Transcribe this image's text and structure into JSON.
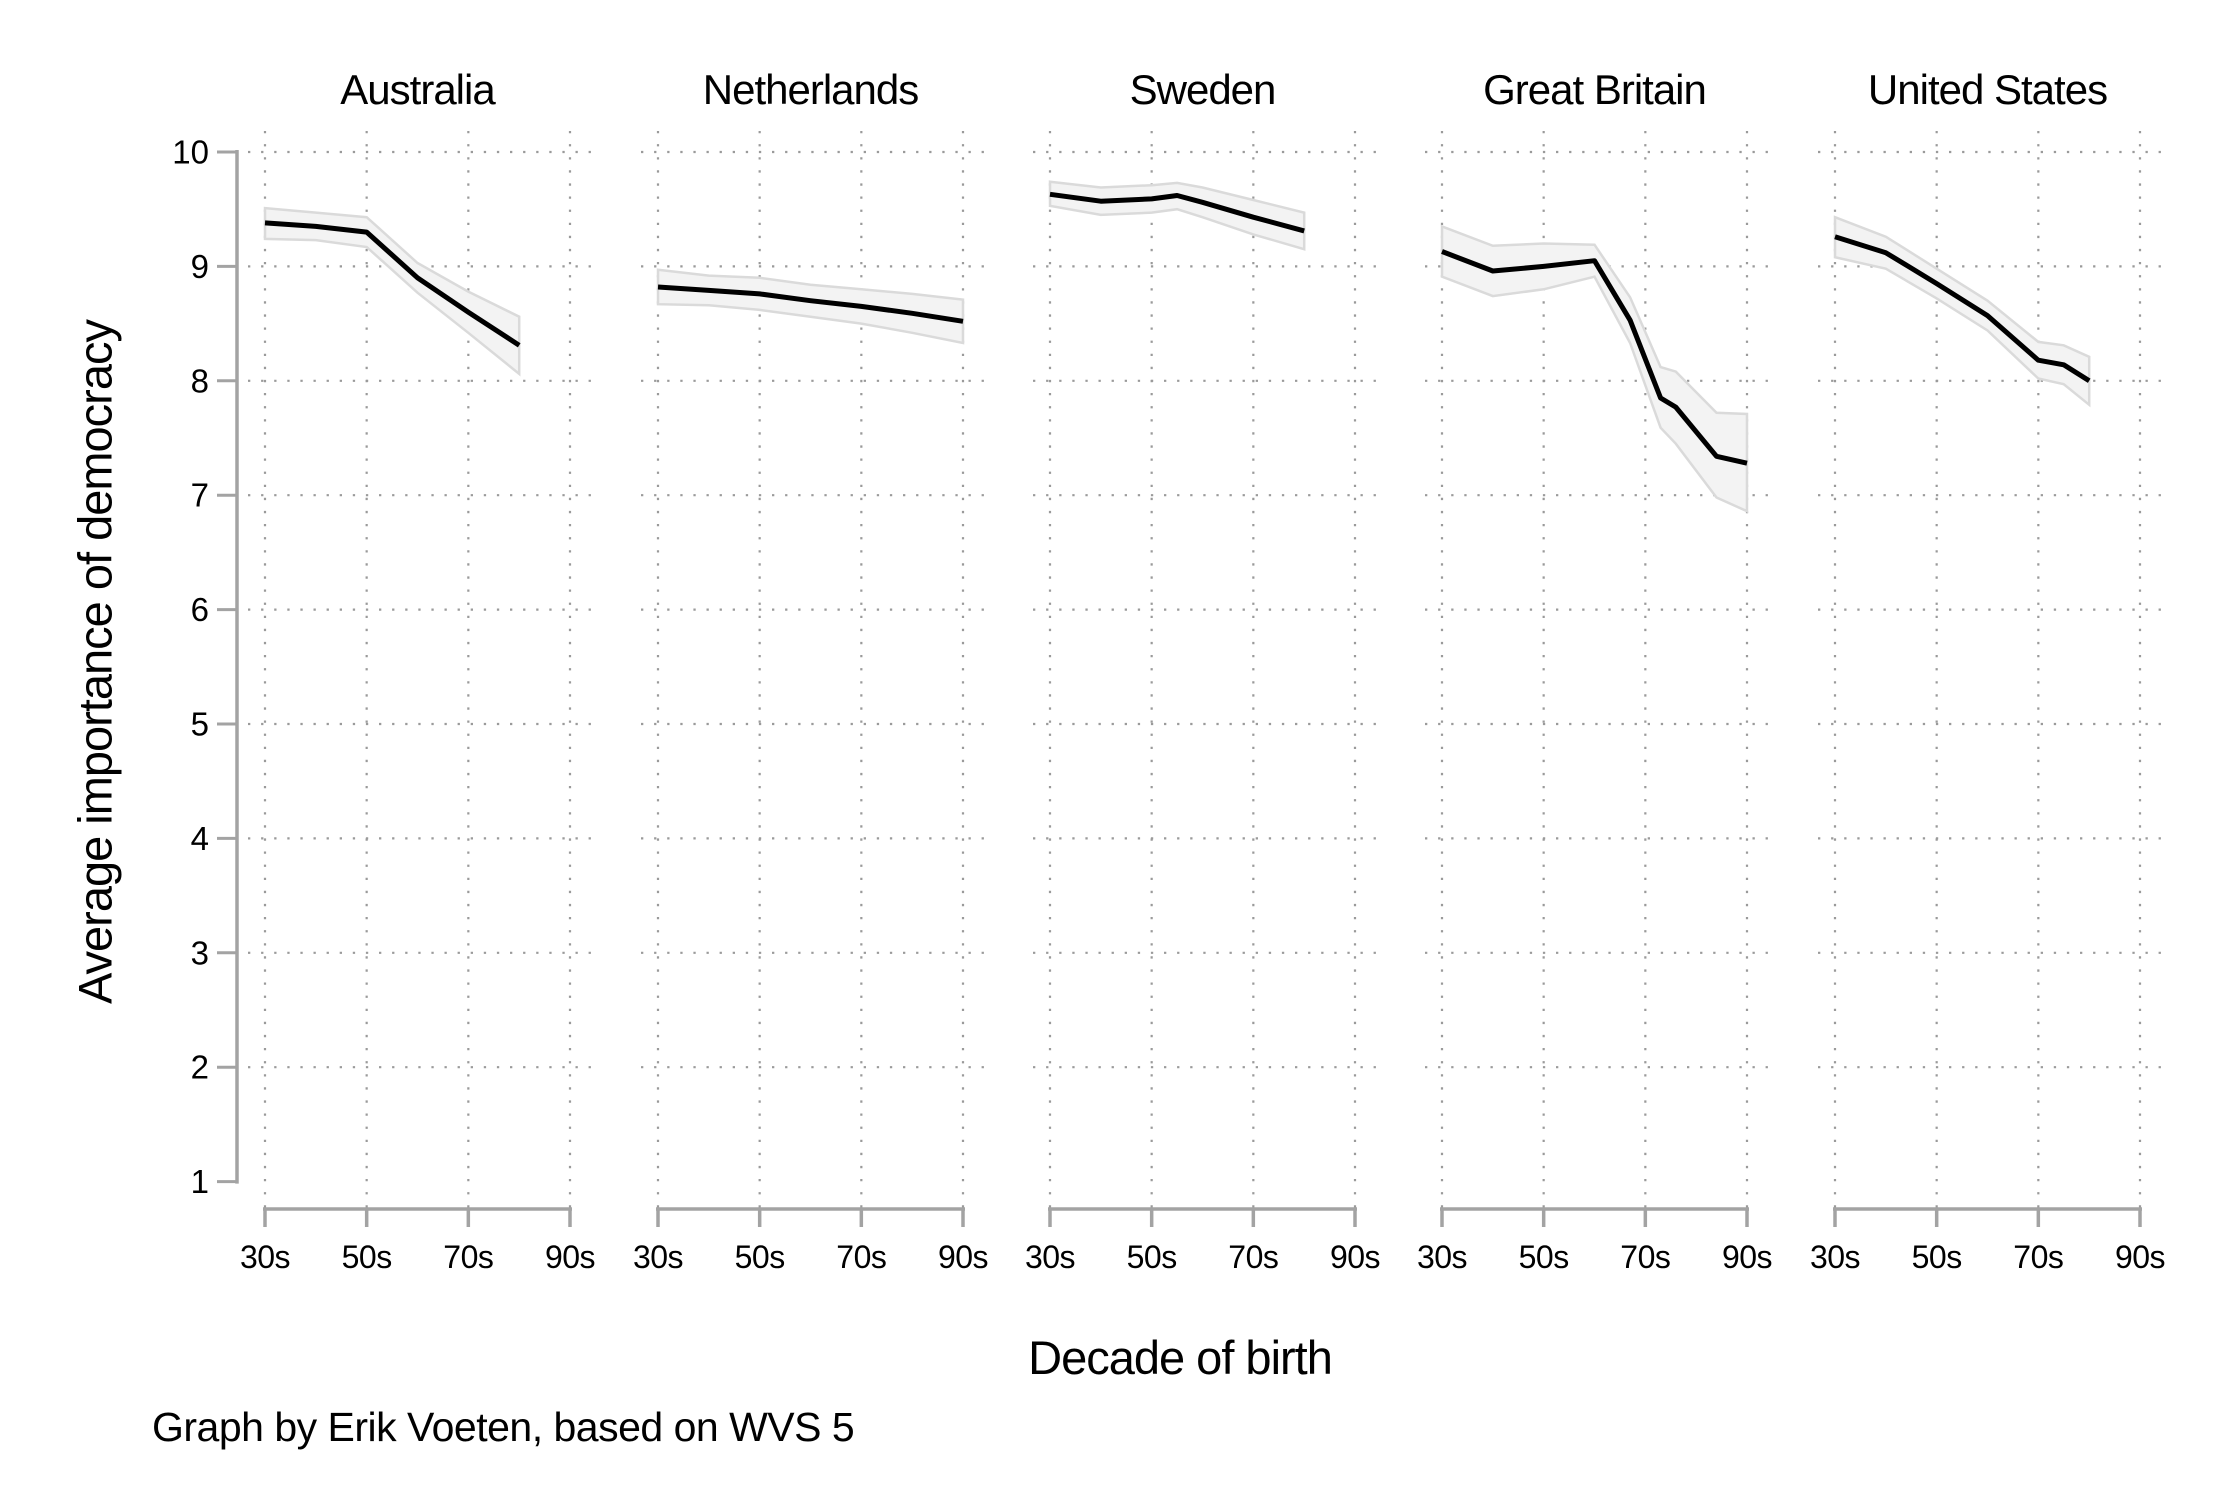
{
  "caption": "Graph by Erik Voeten, based on WVS 5",
  "y_axis": {
    "label": "Average importance of democracy",
    "ticks": [
      10,
      9,
      8,
      7,
      6,
      5,
      4,
      3,
      2,
      1
    ],
    "min": 1,
    "max": 10
  },
  "x_axis": {
    "label": "Decade of birth",
    "ticks": [
      {
        "decade": 30,
        "label": "30s"
      },
      {
        "decade": 50,
        "label": "50s"
      },
      {
        "decade": 70,
        "label": "70s"
      },
      {
        "decade": 90,
        "label": "90s"
      }
    ]
  },
  "colors": {
    "line": "#000000",
    "band_fill": "#f3f3f3",
    "band_edge": "#dadada",
    "grid_dots": "#9a9a9a",
    "axis": "#a3a3a3",
    "text": "#000000",
    "background": "#ffffff"
  },
  "chart_data": {
    "type": "line",
    "title": "",
    "xlabel": "Decade of birth",
    "ylabel": "Average importance of democracy",
    "ylim": [
      1,
      10
    ],
    "grid": "dotted, horizontal at integers 2-10, vertical at labeled decade ticks",
    "band": "confidence interval band around each line",
    "point_format": [
      "decade_of_birth",
      "value",
      "ci_low",
      "ci_high"
    ],
    "facets": [
      {
        "title": "Australia",
        "points": [
          [
            30,
            9.38,
            9.24,
            9.51
          ],
          [
            40,
            9.35,
            9.23,
            9.47
          ],
          [
            50,
            9.3,
            9.17,
            9.43
          ],
          [
            60,
            8.9,
            8.77,
            9.03
          ],
          [
            70,
            8.6,
            8.42,
            8.78
          ],
          [
            80,
            8.31,
            8.06,
            8.56
          ]
        ]
      },
      {
        "title": "Netherlands",
        "points": [
          [
            30,
            8.82,
            8.67,
            8.97
          ],
          [
            40,
            8.79,
            8.66,
            8.92
          ],
          [
            50,
            8.76,
            8.62,
            8.9
          ],
          [
            60,
            8.7,
            8.56,
            8.84
          ],
          [
            70,
            8.65,
            8.5,
            8.8
          ],
          [
            80,
            8.59,
            8.42,
            8.76
          ],
          [
            90,
            8.52,
            8.33,
            8.71
          ]
        ]
      },
      {
        "title": "Sweden",
        "points": [
          [
            30,
            9.63,
            9.53,
            9.74
          ],
          [
            40,
            9.57,
            9.45,
            9.69
          ],
          [
            50,
            9.59,
            9.47,
            9.71
          ],
          [
            55,
            9.62,
            9.5,
            9.73
          ],
          [
            60,
            9.56,
            9.43,
            9.69
          ],
          [
            70,
            9.43,
            9.28,
            9.58
          ],
          [
            80,
            9.31,
            9.15,
            9.47
          ]
        ]
      },
      {
        "title": "Great Britain",
        "points": [
          [
            30,
            9.13,
            8.91,
            9.35
          ],
          [
            40,
            8.96,
            8.74,
            9.18
          ],
          [
            50,
            9.0,
            8.8,
            9.2
          ],
          [
            60,
            9.05,
            8.91,
            9.19
          ],
          [
            67,
            8.53,
            8.33,
            8.73
          ],
          [
            73,
            7.85,
            7.59,
            8.12
          ],
          [
            76,
            7.77,
            7.45,
            8.08
          ],
          [
            84,
            7.34,
            6.98,
            7.72
          ],
          [
            90,
            7.28,
            6.86,
            7.71
          ]
        ]
      },
      {
        "title": "United States",
        "points": [
          [
            30,
            9.26,
            9.08,
            9.43
          ],
          [
            40,
            9.12,
            8.98,
            9.26
          ],
          [
            50,
            8.85,
            8.72,
            8.98
          ],
          [
            60,
            8.57,
            8.44,
            8.7
          ],
          [
            70,
            8.18,
            8.02,
            8.34
          ],
          [
            75,
            8.14,
            7.97,
            8.31
          ],
          [
            80,
            8.0,
            7.79,
            8.21
          ]
        ]
      }
    ]
  }
}
